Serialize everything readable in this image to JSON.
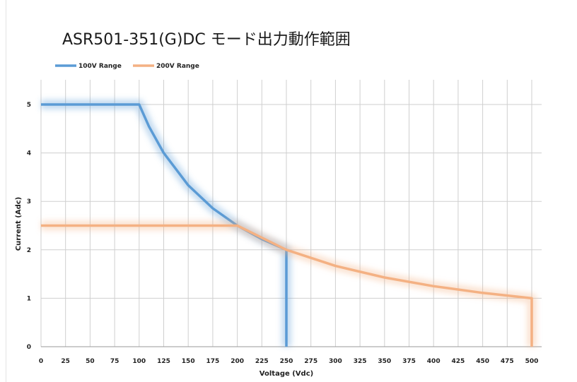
{
  "chart_data": {
    "type": "line",
    "title": "ASR501-351(G)DC モード出力動作範囲",
    "xlabel": "Voltage (Vdc)",
    "ylabel": "Current (Adc)",
    "xlim": [
      0,
      500
    ],
    "ylim": [
      0,
      5
    ],
    "xticks": [
      0,
      25,
      50,
      75,
      100,
      125,
      150,
      175,
      200,
      225,
      250,
      275,
      300,
      325,
      350,
      375,
      400,
      425,
      450,
      475,
      500
    ],
    "yticks": [
      0,
      1,
      2,
      3,
      4,
      5
    ],
    "grid": "vertical lines at x ticks, horizontal lines at y ticks",
    "legend_position": "top-left",
    "series": [
      {
        "name": "100V Range",
        "color": "#5b9bd5",
        "x": [
          0,
          100,
          110,
          125,
          150,
          175,
          200,
          225,
          250,
          250
        ],
        "y": [
          5,
          5,
          4.545,
          4,
          3.333,
          2.857,
          2.5,
          2.222,
          2,
          0
        ]
      },
      {
        "name": "200V Range",
        "color": "#f4b183",
        "x": [
          0,
          200,
          250,
          300,
          350,
          400,
          450,
          500,
          500
        ],
        "y": [
          2.5,
          2.5,
          2,
          1.667,
          1.429,
          1.25,
          1.111,
          1,
          0
        ]
      }
    ]
  }
}
